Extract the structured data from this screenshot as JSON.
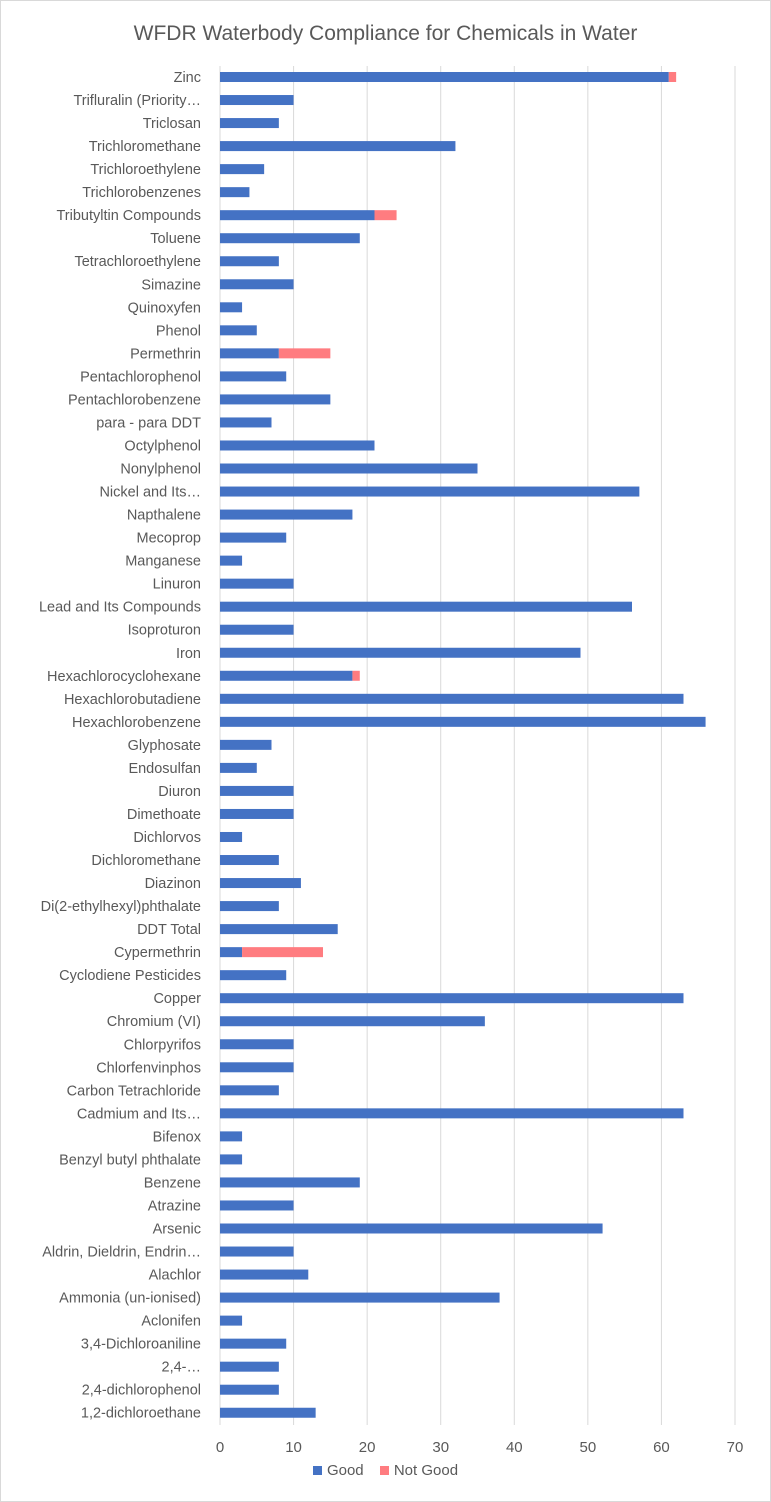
{
  "chart_data": {
    "type": "bar",
    "orientation": "horizontal",
    "stacked": true,
    "title": "WFDR Waterbody Compliance for Chemicals in Water",
    "xlabel": "",
    "ylabel": "",
    "xlim": [
      0,
      70
    ],
    "xticks": [
      0,
      10,
      20,
      30,
      40,
      50,
      60,
      70
    ],
    "grid": true,
    "legend_position": "bottom",
    "categories": [
      "Zinc",
      "Trifluralin (Priority…",
      "Triclosan",
      "Trichloromethane",
      "Trichloroethylene",
      "Trichlorobenzenes",
      "Tributyltin Compounds",
      "Toluene",
      "Tetrachloroethylene",
      "Simazine",
      "Quinoxyfen",
      "Phenol",
      "Permethrin",
      "Pentachlorophenol",
      "Pentachlorobenzene",
      "para - para DDT",
      "Octylphenol",
      "Nonylphenol",
      "Nickel and Its…",
      "Napthalene",
      "Mecoprop",
      "Manganese",
      "Linuron",
      "Lead and Its Compounds",
      "Isoproturon",
      "Iron",
      "Hexachlorocyclohexane",
      "Hexachlorobutadiene",
      "Hexachlorobenzene",
      "Glyphosate",
      "Endosulfan",
      "Diuron",
      "Dimethoate",
      "Dichlorvos",
      "Dichloromethane",
      "Diazinon",
      "Di(2-ethylhexyl)phthalate",
      "DDT Total",
      "Cypermethrin",
      "Cyclodiene Pesticides",
      "Copper",
      "Chromium (VI)",
      "Chlorpyrifos",
      "Chlorfenvinphos",
      "Carbon Tetrachloride",
      "Cadmium and Its…",
      "Bifenox",
      "Benzyl butyl phthalate",
      "Benzene",
      "Atrazine",
      "Arsenic",
      "Aldrin, Dieldrin, Endrin…",
      "Alachlor",
      "Ammonia (un-ionised)",
      "Aclonifen",
      "3,4-Dichloroaniline",
      "2,4-…",
      "2,4-dichlorophenol",
      "1,2-dichloroethane"
    ],
    "series": [
      {
        "name": "Good",
        "color": "#4472c4",
        "values": [
          61,
          10,
          8,
          32,
          6,
          4,
          21,
          19,
          8,
          10,
          3,
          5,
          8,
          9,
          15,
          7,
          21,
          35,
          57,
          18,
          9,
          3,
          10,
          56,
          10,
          49,
          18,
          63,
          66,
          7,
          5,
          10,
          10,
          3,
          8,
          11,
          8,
          16,
          3,
          9,
          63,
          36,
          10,
          10,
          8,
          63,
          3,
          3,
          19,
          10,
          52,
          10,
          12,
          38,
          3,
          9,
          8,
          8,
          13
        ]
      },
      {
        "name": "Not Good",
        "color": "#ff7c80",
        "values": [
          1,
          0,
          0,
          0,
          0,
          0,
          3,
          0,
          0,
          0,
          0,
          0,
          7,
          0,
          0,
          0,
          0,
          0,
          0,
          0,
          0,
          0,
          0,
          0,
          0,
          0,
          1,
          0,
          0,
          0,
          0,
          0,
          0,
          0,
          0,
          0,
          0,
          0,
          11,
          0,
          0,
          0,
          0,
          0,
          0,
          0,
          0,
          0,
          0,
          0,
          0,
          0,
          0,
          0,
          0,
          0,
          0,
          0,
          0
        ]
      }
    ]
  }
}
